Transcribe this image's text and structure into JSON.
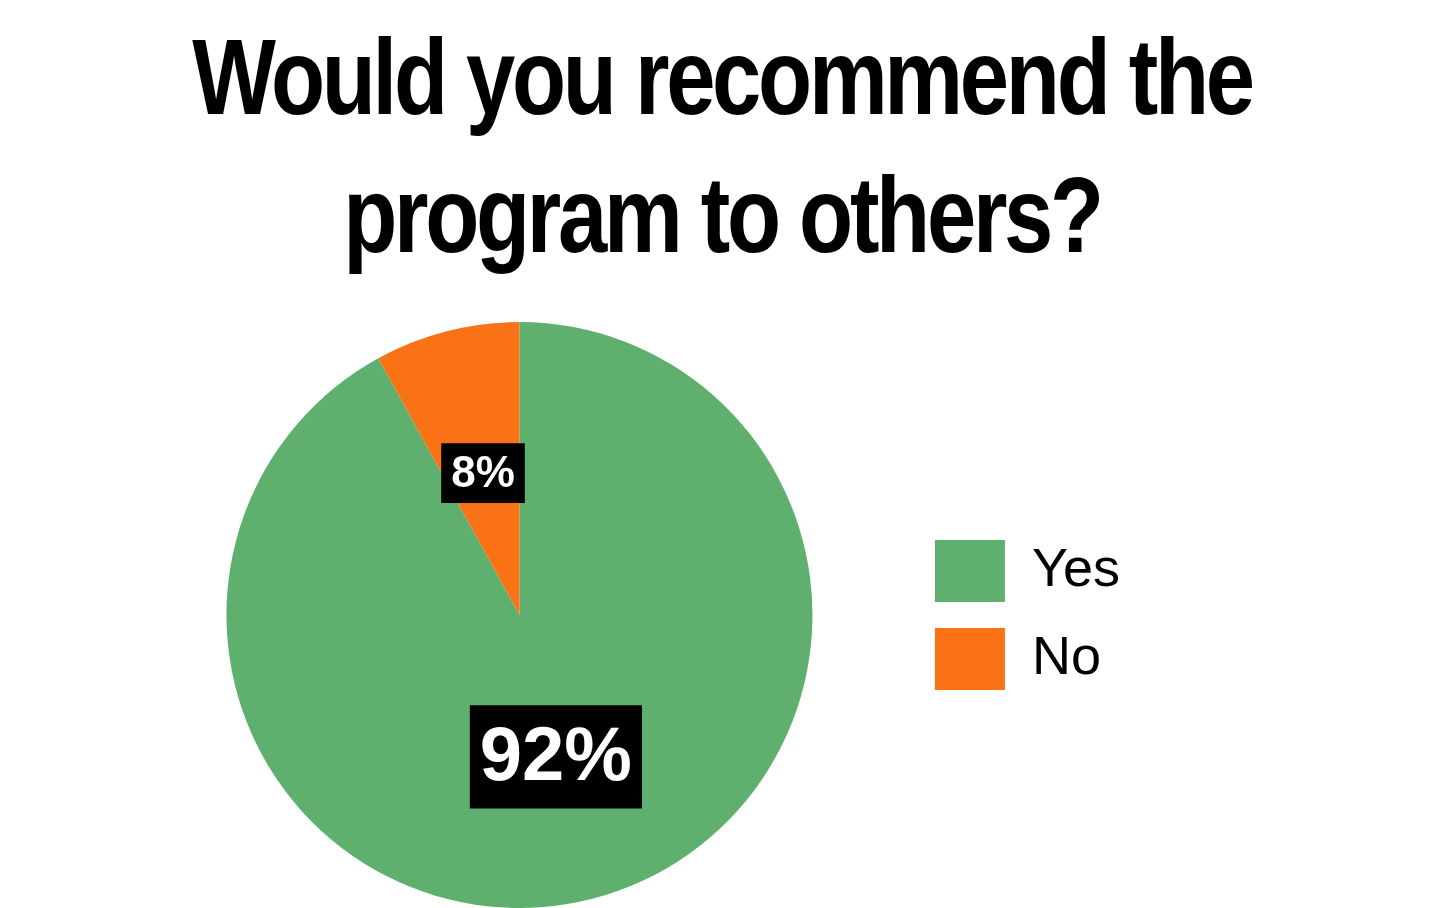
{
  "chart_data": {
    "type": "pie",
    "title": "Would you recommend the program to others?",
    "categories": [
      "Yes",
      "No"
    ],
    "values": [
      92,
      8
    ],
    "colors": [
      "#5fb06e",
      "#f97216"
    ],
    "value_labels": [
      "92%",
      "8%"
    ],
    "legend": "right"
  }
}
